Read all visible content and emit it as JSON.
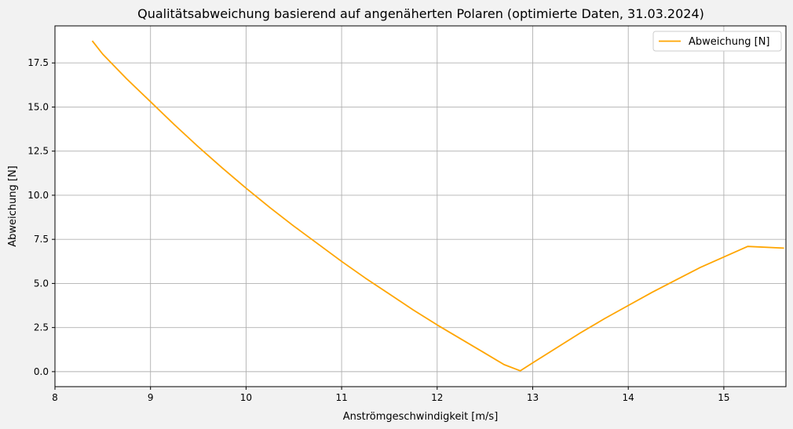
{
  "chart_data": {
    "type": "line",
    "title": "Qualitätsabweichung basierend auf angenäherten Polaren (optimierte Daten, 31.03.2024)",
    "xlabel": "Anströmgeschwindigkeit [m/s]",
    "ylabel": "Abweichung [N]",
    "xlim": [
      8.0,
      15.65
    ],
    "ylim": [
      -0.85,
      19.6
    ],
    "xticks": [
      8,
      9,
      10,
      11,
      12,
      13,
      14,
      15
    ],
    "yticks": [
      0.0,
      2.5,
      5.0,
      7.5,
      10.0,
      12.5,
      15.0,
      17.5
    ],
    "xtick_labels": [
      "8",
      "9",
      "10",
      "11",
      "12",
      "13",
      "14",
      "15"
    ],
    "ytick_labels": [
      "0.0",
      "2.5",
      "5.0",
      "7.5",
      "10.0",
      "12.5",
      "15.0",
      "17.5"
    ],
    "grid": true,
    "legend_position": "top-right",
    "series": [
      {
        "name": "Abweichung [N]",
        "color": "#ffa500",
        "x": [
          8.39,
          8.5,
          8.75,
          9.0,
          9.25,
          9.5,
          9.75,
          10.0,
          10.25,
          10.5,
          10.75,
          11.0,
          11.25,
          11.5,
          11.75,
          12.0,
          12.25,
          12.5,
          12.7,
          12.87,
          13.0,
          13.25,
          13.5,
          13.75,
          14.0,
          14.25,
          14.5,
          14.75,
          15.0,
          15.25,
          15.63
        ],
        "y": [
          18.75,
          18.0,
          16.6,
          15.3,
          14.0,
          12.75,
          11.55,
          10.4,
          9.3,
          8.25,
          7.25,
          6.25,
          5.3,
          4.4,
          3.5,
          2.65,
          1.85,
          1.05,
          0.4,
          0.05,
          0.5,
          1.35,
          2.2,
          3.0,
          3.75,
          4.5,
          5.2,
          5.9,
          6.5,
          7.1,
          7.0
        ]
      }
    ]
  }
}
